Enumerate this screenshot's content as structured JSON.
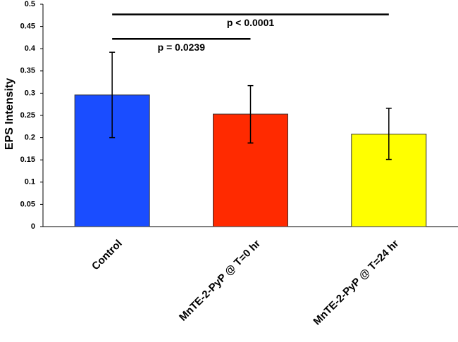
{
  "chart_data": {
    "type": "bar",
    "title": "",
    "xlabel": "",
    "ylabel": "EPS Intensity",
    "ylim": [
      0,
      0.5
    ],
    "yticks": [
      0,
      0.05,
      0.1,
      0.15,
      0.2,
      0.25,
      0.3,
      0.35,
      0.4,
      0.45,
      0.5
    ],
    "ytick_labels": [
      "0",
      "0.05",
      "0.1",
      "0.15",
      "0.2",
      "0.25",
      "0.3",
      "0.35",
      "0.4",
      "0.45",
      "0.5"
    ],
    "grid": false,
    "legend": "none",
    "categories": [
      "Control",
      "MnTE-2-PyP @ T=0 hr",
      "MnTE-2-PyP @ T=24 hr"
    ],
    "values": [
      0.296,
      0.253,
      0.208
    ],
    "error_low": [
      0.2,
      0.188,
      0.151
    ],
    "error_high": [
      0.392,
      0.317,
      0.266
    ],
    "colors": [
      "#1a4dff",
      "#ff2a00",
      "#ffff00"
    ],
    "annotations": [
      {
        "text": "p = 0.0239",
        "from_category": 0,
        "to_category": 1,
        "y": 0.422
      },
      {
        "text": "p < 0.0001",
        "from_category": 0,
        "to_category": 2,
        "y": 0.477
      }
    ]
  }
}
